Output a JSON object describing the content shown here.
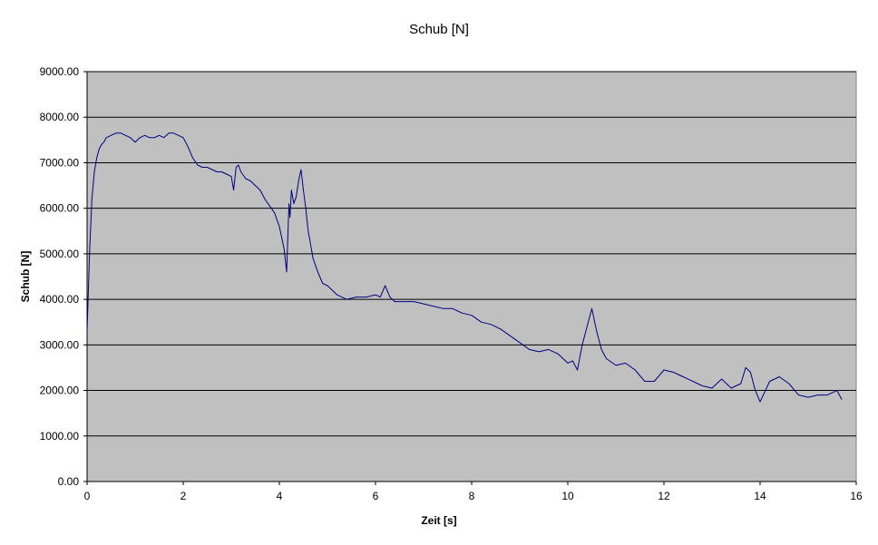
{
  "chart_data": {
    "type": "line",
    "title": "Schub [N]",
    "xlabel": "Zeit [s]",
    "ylabel": "Schub [N]",
    "xlim": [
      0,
      16
    ],
    "ylim": [
      0,
      9000
    ],
    "x_ticks": [
      0,
      2,
      4,
      6,
      8,
      10,
      12,
      14,
      16
    ],
    "x_tick_labels": [
      "0",
      "2",
      "4",
      "6",
      "8",
      "10",
      "12",
      "14",
      "16"
    ],
    "y_ticks": [
      0,
      1000,
      2000,
      3000,
      4000,
      5000,
      6000,
      7000,
      8000,
      9000
    ],
    "y_tick_labels": [
      "0.00",
      "1000.00",
      "2000.00",
      "3000.00",
      "4000.00",
      "5000.00",
      "6000.00",
      "7000.00",
      "8000.00",
      "9000.00"
    ],
    "grid": "horizontal",
    "legend": "none",
    "colors": {
      "plot_background": "#c0c0c0",
      "line": "#000080",
      "gridline": "#000000",
      "axis": "#000000"
    },
    "series": [
      {
        "x": [
          0.0,
          0.02,
          0.05,
          0.1,
          0.15,
          0.2,
          0.25,
          0.3,
          0.35,
          0.4,
          0.5,
          0.6,
          0.7,
          0.8,
          0.9,
          1.0,
          1.1,
          1.2,
          1.3,
          1.4,
          1.5,
          1.6,
          1.7,
          1.8,
          1.9,
          2.0,
          2.1,
          2.2,
          2.3,
          2.4,
          2.5,
          2.6,
          2.7,
          2.8,
          2.9,
          3.0,
          3.05,
          3.1,
          3.15,
          3.2,
          3.3,
          3.4,
          3.5,
          3.6,
          3.7,
          3.8,
          3.9,
          4.0,
          4.1,
          4.15,
          4.2,
          4.22,
          4.25,
          4.3,
          4.35,
          4.4,
          4.45,
          4.5,
          4.55,
          4.6,
          4.65,
          4.7,
          4.8,
          4.9,
          5.0,
          5.2,
          5.4,
          5.6,
          5.8,
          6.0,
          6.1,
          6.2,
          6.3,
          6.4,
          6.6,
          6.8,
          7.0,
          7.2,
          7.4,
          7.6,
          7.8,
          8.0,
          8.2,
          8.4,
          8.6,
          8.8,
          9.0,
          9.2,
          9.4,
          9.6,
          9.8,
          10.0,
          10.1,
          10.2,
          10.3,
          10.4,
          10.5,
          10.6,
          10.7,
          10.8,
          11.0,
          11.2,
          11.4,
          11.6,
          11.8,
          12.0,
          12.2,
          12.4,
          12.6,
          12.8,
          13.0,
          13.2,
          13.4,
          13.6,
          13.7,
          13.8,
          13.9,
          14.0,
          14.2,
          14.4,
          14.6,
          14.8,
          15.0,
          15.2,
          15.4,
          15.6,
          15.7
        ],
        "y": [
          3300,
          4000,
          5000,
          6200,
          6800,
          7100,
          7300,
          7400,
          7450,
          7550,
          7600,
          7650,
          7650,
          7600,
          7550,
          7450,
          7550,
          7600,
          7550,
          7550,
          7600,
          7550,
          7650,
          7650,
          7600,
          7550,
          7350,
          7100,
          6950,
          6900,
          6900,
          6850,
          6800,
          6800,
          6750,
          6700,
          6400,
          6900,
          6950,
          6800,
          6650,
          6600,
          6500,
          6400,
          6200,
          6050,
          5900,
          5600,
          5100,
          4600,
          6100,
          5800,
          6400,
          6100,
          6250,
          6600,
          6850,
          6400,
          6000,
          5500,
          5200,
          4900,
          4600,
          4350,
          4300,
          4100,
          4000,
          4050,
          4050,
          4100,
          4050,
          4300,
          4050,
          3950,
          3950,
          3950,
          3900,
          3850,
          3800,
          3800,
          3700,
          3650,
          3500,
          3450,
          3350,
          3200,
          3050,
          2900,
          2850,
          2900,
          2800,
          2600,
          2650,
          2450,
          3000,
          3400,
          3800,
          3300,
          2900,
          2700,
          2550,
          2600,
          2450,
          2200,
          2200,
          2450,
          2400,
          2300,
          2200,
          2100,
          2050,
          2250,
          2050,
          2150,
          2500,
          2400,
          2000,
          1750,
          2200,
          2300,
          2150,
          1900,
          1850,
          1900,
          1900,
          2000,
          1800
        ]
      }
    ]
  }
}
